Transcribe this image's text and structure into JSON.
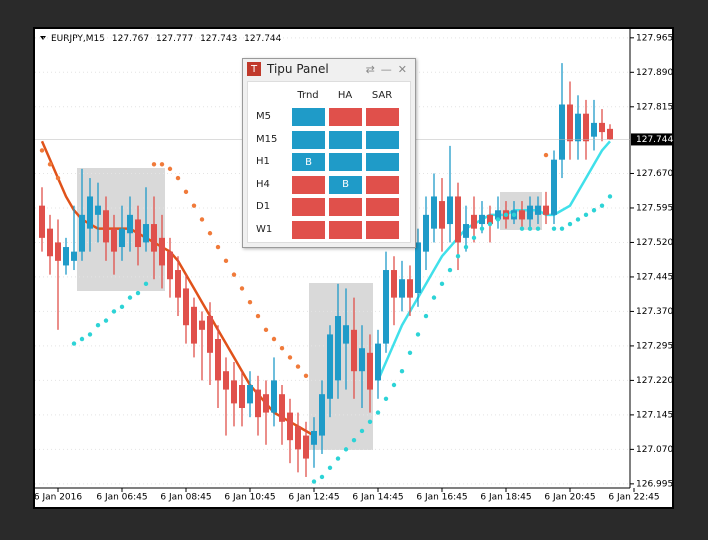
{
  "chart_data": {
    "type": "candlestick",
    "title": "EURJPY,M15",
    "categories": [
      null,
      null,
      "6 Jan 2016",
      null,
      null,
      null,
      null,
      null,
      null,
      null,
      "6 Jan 06:45",
      null,
      null,
      null,
      null,
      null,
      null,
      null,
      "6 Jan 08:45",
      null,
      null,
      null,
      null,
      null,
      null,
      null,
      "6 Jan 10:45",
      null,
      null,
      null,
      null,
      null,
      null,
      null,
      "6 Jan 12:45",
      null,
      null,
      null,
      null,
      null,
      null,
      null,
      "6 Jan 14:45",
      null,
      null,
      null,
      null,
      null,
      null,
      null,
      "6 Jan 16:45",
      null,
      null,
      null,
      null,
      null,
      null,
      null,
      "6 Jan 18:45",
      null,
      null,
      null,
      null,
      null,
      null,
      null,
      "6 Jan 20:45",
      null,
      null,
      null,
      null,
      null,
      null,
      null,
      "6 Jan 22:45"
    ],
    "open": [
      127.6,
      127.55,
      127.52,
      127.47,
      127.48,
      127.5,
      127.55,
      127.58,
      127.59,
      127.55,
      127.51,
      127.54,
      127.57,
      127.52,
      127.56,
      127.53,
      127.5,
      127.46,
      127.42,
      127.38,
      127.35,
      127.36,
      127.31,
      127.24,
      127.22,
      127.21,
      127.17,
      127.2,
      127.19,
      127.15,
      127.19,
      127.15,
      127.12,
      127.1,
      127.08,
      127.1,
      127.18,
      127.22,
      127.3,
      127.33,
      127.24,
      127.28,
      127.22,
      127.3,
      127.46,
      127.4,
      127.44,
      127.41,
      127.5,
      127.55,
      127.61,
      127.56,
      127.62,
      127.53,
      127.58,
      127.56,
      127.58,
      127.57,
      127.59,
      127.57,
      127.59,
      127.57,
      127.58,
      127.6,
      127.58,
      127.7,
      127.82,
      127.74,
      127.8,
      127.75,
      127.78,
      127.767,
      null,
      null,
      null
    ],
    "high": [
      127.64,
      127.58,
      127.57,
      127.53,
      127.6,
      127.68,
      127.66,
      127.65,
      127.62,
      127.58,
      127.6,
      127.62,
      127.6,
      127.64,
      127.62,
      127.58,
      127.53,
      127.49,
      127.45,
      127.4,
      127.37,
      127.39,
      127.34,
      127.27,
      127.26,
      127.24,
      127.24,
      127.23,
      127.22,
      127.27,
      127.21,
      127.18,
      127.15,
      127.13,
      127.14,
      127.22,
      127.34,
      127.43,
      127.42,
      127.4,
      127.34,
      127.32,
      127.33,
      127.5,
      127.49,
      127.48,
      127.47,
      127.55,
      127.62,
      127.67,
      127.66,
      127.73,
      127.65,
      127.6,
      127.62,
      127.61,
      127.6,
      127.62,
      127.61,
      127.61,
      127.61,
      127.62,
      127.62,
      127.63,
      127.72,
      127.91,
      127.87,
      127.84,
      127.83,
      127.83,
      127.81,
      127.777,
      null,
      null,
      null
    ],
    "low": [
      127.5,
      127.45,
      127.33,
      127.45,
      127.46,
      127.48,
      127.5,
      127.52,
      127.48,
      127.45,
      127.48,
      127.5,
      127.47,
      127.5,
      127.44,
      127.42,
      127.4,
      127.36,
      127.3,
      127.27,
      127.22,
      127.21,
      127.16,
      127.1,
      127.12,
      127.12,
      127.14,
      127.1,
      127.08,
      127.12,
      127.08,
      127.04,
      127.02,
      127.01,
      127.03,
      127.06,
      127.14,
      127.18,
      127.2,
      127.18,
      127.16,
      127.15,
      127.18,
      127.28,
      127.34,
      127.37,
      127.36,
      127.38,
      127.46,
      127.52,
      127.5,
      127.52,
      127.46,
      127.5,
      127.52,
      127.54,
      127.52,
      127.55,
      127.55,
      127.56,
      127.55,
      127.55,
      127.56,
      127.56,
      127.56,
      127.66,
      127.7,
      127.7,
      127.7,
      127.72,
      127.74,
      127.743,
      null,
      null,
      null
    ],
    "close": [
      127.53,
      127.49,
      127.48,
      127.51,
      127.5,
      127.58,
      127.62,
      127.6,
      127.52,
      127.5,
      127.55,
      127.58,
      127.51,
      127.56,
      127.5,
      127.47,
      127.44,
      127.4,
      127.34,
      127.3,
      127.33,
      127.28,
      127.22,
      127.2,
      127.17,
      127.16,
      127.21,
      127.14,
      127.15,
      127.22,
      127.13,
      127.09,
      127.07,
      127.05,
      127.11,
      127.19,
      127.32,
      127.36,
      127.34,
      127.24,
      127.29,
      127.2,
      127.3,
      127.46,
      127.4,
      127.44,
      127.4,
      127.52,
      127.58,
      127.62,
      127.55,
      127.62,
      127.52,
      127.56,
      127.55,
      127.58,
      127.56,
      127.59,
      127.57,
      127.59,
      127.57,
      127.6,
      127.6,
      127.58,
      127.7,
      127.82,
      127.74,
      127.8,
      127.74,
      127.78,
      127.76,
      127.744,
      null,
      null,
      null
    ],
    "up_color": "#1f9bc8",
    "down_color": "#e0504b",
    "lines": [
      {
        "color": "#e0521a",
        "values": [
          127.74,
          127.7,
          127.66,
          127.62,
          127.59,
          127.57,
          127.56,
          127.55,
          127.55,
          127.55,
          127.55,
          127.55,
          127.54,
          127.53,
          127.52,
          127.51,
          127.5,
          127.48,
          127.45,
          127.42,
          127.39,
          127.36,
          127.33,
          127.3,
          127.27,
          127.24,
          127.21,
          127.19,
          127.17,
          127.15,
          127.14,
          127.13,
          127.12,
          127.11,
          127.1,
          null,
          null,
          null,
          null,
          null,
          null,
          null,
          null,
          null,
          null,
          null,
          null,
          null,
          null,
          null,
          null,
          null,
          null,
          null,
          null,
          null,
          null,
          null,
          null,
          null,
          null,
          null,
          null,
          null,
          null,
          null,
          null,
          null,
          null,
          null,
          null,
          null,
          null,
          null,
          null
        ]
      },
      {
        "color": "#40e0ea",
        "values": [
          null,
          null,
          null,
          null,
          null,
          null,
          null,
          null,
          null,
          null,
          null,
          null,
          null,
          null,
          null,
          null,
          null,
          null,
          null,
          null,
          null,
          null,
          null,
          null,
          null,
          null,
          null,
          null,
          null,
          null,
          null,
          null,
          null,
          null,
          null,
          null,
          null,
          null,
          null,
          null,
          null,
          null,
          127.22,
          127.26,
          127.3,
          127.34,
          127.37,
          127.4,
          127.43,
          127.46,
          127.49,
          127.51,
          127.53,
          127.55,
          127.56,
          127.57,
          127.58,
          127.58,
          127.58,
          127.59,
          127.59,
          127.59,
          127.59,
          127.58,
          127.58,
          127.59,
          127.6,
          127.63,
          127.66,
          127.69,
          127.72,
          127.74,
          null,
          null,
          null
        ]
      }
    ],
    "dots": [
      {
        "color": "#f07a3a",
        "values": [
          127.72,
          127.69,
          127.66,
          null,
          null,
          null,
          null,
          null,
          null,
          null,
          null,
          null,
          null,
          null,
          127.69,
          127.69,
          127.68,
          127.66,
          127.63,
          127.6,
          127.57,
          127.54,
          127.51,
          127.48,
          127.45,
          127.42,
          127.39,
          127.36,
          127.33,
          127.31,
          127.29,
          127.27,
          127.25,
          127.23,
          null,
          null,
          null,
          null,
          null,
          null,
          null,
          null,
          null,
          null,
          null,
          null,
          null,
          null,
          null,
          null,
          null,
          null,
          null,
          null,
          null,
          null,
          null,
          null,
          null,
          null,
          null,
          null,
          null,
          127.71,
          null,
          null,
          null,
          null,
          null,
          null,
          null,
          null,
          null,
          null,
          null
        ]
      },
      {
        "color": "#2dd3d6",
        "values": [
          null,
          null,
          null,
          null,
          127.3,
          127.31,
          127.32,
          127.34,
          127.35,
          127.37,
          127.38,
          127.4,
          127.41,
          127.43,
          null,
          null,
          null,
          null,
          null,
          null,
          null,
          null,
          null,
          null,
          null,
          null,
          null,
          null,
          null,
          null,
          null,
          null,
          null,
          null,
          127.0,
          127.01,
          127.03,
          127.05,
          127.07,
          127.09,
          127.11,
          127.13,
          127.15,
          127.18,
          127.21,
          127.24,
          127.28,
          127.32,
          127.36,
          127.4,
          127.43,
          127.46,
          127.49,
          127.51,
          127.53,
          127.55,
          127.56,
          127.57,
          127.58,
          127.58,
          127.55,
          127.55,
          127.55,
          null,
          127.55,
          127.55,
          127.56,
          127.57,
          127.58,
          127.59,
          127.6,
          127.62,
          null,
          null,
          null
        ]
      }
    ],
    "ylim": [
      126.986,
      127.982
    ],
    "yticks": [
      126.995,
      {
        "value": 127.07,
        "label": "127.070"
      },
      127.145,
      {
        "value": 127.22,
        "label": "127.220"
      },
      127.295,
      {
        "value": 127.37,
        "label": "127.370"
      },
      127.445,
      {
        "value": 127.52,
        "label": "127.520"
      },
      127.595,
      {
        "value": 127.67,
        "label": "127.670"
      },
      127.815,
      {
        "value": 127.89,
        "label": "127.890"
      },
      127.965
    ],
    "grid": true
  },
  "panel": {
    "title": "Tipu Panel",
    "columns": [
      "Trnd",
      "HA",
      "SAR"
    ],
    "rows": [
      {
        "label": "M5",
        "cells": [
          {
            "color": "#1f9bc8"
          },
          {
            "color": "#e0504b"
          },
          {
            "color": "#e0504b"
          }
        ]
      },
      {
        "label": "M15",
        "cells": [
          {
            "color": "#1f9bc8"
          },
          {
            "color": "#1f9bc8"
          },
          {
            "color": "#1f9bc8"
          }
        ]
      },
      {
        "label": "H1",
        "cells": [
          {
            "color": "#1f9bc8",
            "text": "B"
          },
          {
            "color": "#1f9bc8"
          },
          {
            "color": "#1f9bc8"
          }
        ]
      },
      {
        "label": "H4",
        "cells": [
          {
            "color": "#e0504b"
          },
          {
            "color": "#1f9bc8",
            "text": "B"
          },
          {
            "color": "#e0504b"
          }
        ]
      },
      {
        "label": "D1",
        "cells": [
          {
            "color": "#e0504b"
          },
          {
            "color": "#e0504b"
          },
          {
            "color": "#e0504b"
          }
        ]
      },
      {
        "label": "W1",
        "cells": [
          {
            "color": "#e0504b"
          },
          {
            "color": "#e0504b"
          },
          {
            "color": "#e0504b"
          }
        ]
      }
    ]
  }
}
